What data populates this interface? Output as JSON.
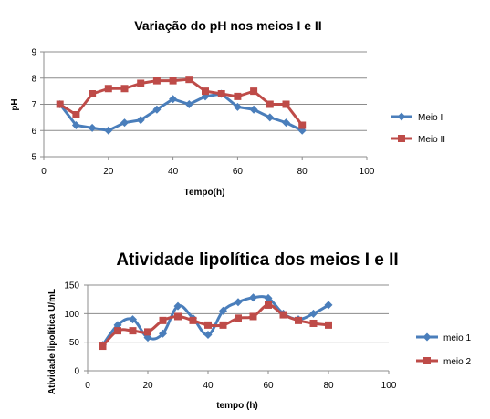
{
  "chart_data": [
    {
      "type": "line",
      "title": "Variação do pH nos meios I e II",
      "xlabel": "Tempo(h)",
      "ylabel": "pH",
      "xlim": [
        0,
        100
      ],
      "ylim": [
        5,
        9
      ],
      "xticks": [
        "0",
        "20",
        "40",
        "60",
        "80",
        "100"
      ],
      "yticks": [
        "5",
        "6",
        "7",
        "8",
        "9"
      ],
      "grid": "horizontal",
      "legend_position": "right",
      "series": [
        {
          "name": "Meio I",
          "color": "#4a7ebb",
          "marker": "diamond",
          "smooth": false,
          "x": [
            5,
            10,
            15,
            20,
            25,
            30,
            35,
            40,
            45,
            50,
            55,
            60,
            65,
            70,
            75,
            80
          ],
          "y": [
            7.0,
            6.2,
            6.1,
            6.0,
            6.3,
            6.4,
            6.8,
            7.2,
            7.0,
            7.3,
            7.4,
            6.9,
            6.8,
            6.5,
            6.3,
            6.0
          ]
        },
        {
          "name": "Meio II",
          "color": "#be4b48",
          "marker": "square",
          "smooth": false,
          "x": [
            5,
            10,
            15,
            20,
            25,
            30,
            35,
            40,
            45,
            50,
            55,
            60,
            65,
            70,
            75,
            80
          ],
          "y": [
            7.0,
            6.6,
            7.4,
            7.6,
            7.6,
            7.8,
            7.9,
            7.9,
            7.95,
            7.5,
            7.4,
            7.3,
            7.5,
            7.0,
            7.0,
            6.2
          ]
        }
      ]
    },
    {
      "type": "line",
      "title": "Atividade lipolítica dos meios I e II",
      "xlabel": "tempo (h)",
      "ylabel": "Atividade lipolítica  U/mL",
      "xlim": [
        0,
        100
      ],
      "ylim": [
        0,
        150
      ],
      "xticks": [
        "0",
        "20",
        "40",
        "60",
        "80",
        "100"
      ],
      "yticks": [
        "0",
        "50",
        "100",
        "150"
      ],
      "grid": "horizontal",
      "legend_position": "right",
      "series": [
        {
          "name": "meio 1",
          "color": "#4a7ebb",
          "marker": "diamond",
          "smooth": true,
          "x": [
            5,
            10,
            15,
            20,
            25,
            30,
            35,
            40,
            45,
            50,
            55,
            60,
            65,
            70,
            75,
            80
          ],
          "y": [
            45,
            80,
            90,
            58,
            65,
            113,
            92,
            63,
            105,
            120,
            128,
            127,
            100,
            90,
            100,
            115
          ]
        },
        {
          "name": "meio 2",
          "color": "#be4b48",
          "marker": "square",
          "smooth": true,
          "x": [
            5,
            10,
            15,
            20,
            25,
            30,
            35,
            40,
            45,
            50,
            55,
            60,
            65,
            70,
            75,
            80
          ],
          "y": [
            43,
            70,
            70,
            68,
            88,
            95,
            88,
            80,
            80,
            92,
            95,
            115,
            98,
            88,
            83,
            80
          ]
        }
      ]
    }
  ]
}
